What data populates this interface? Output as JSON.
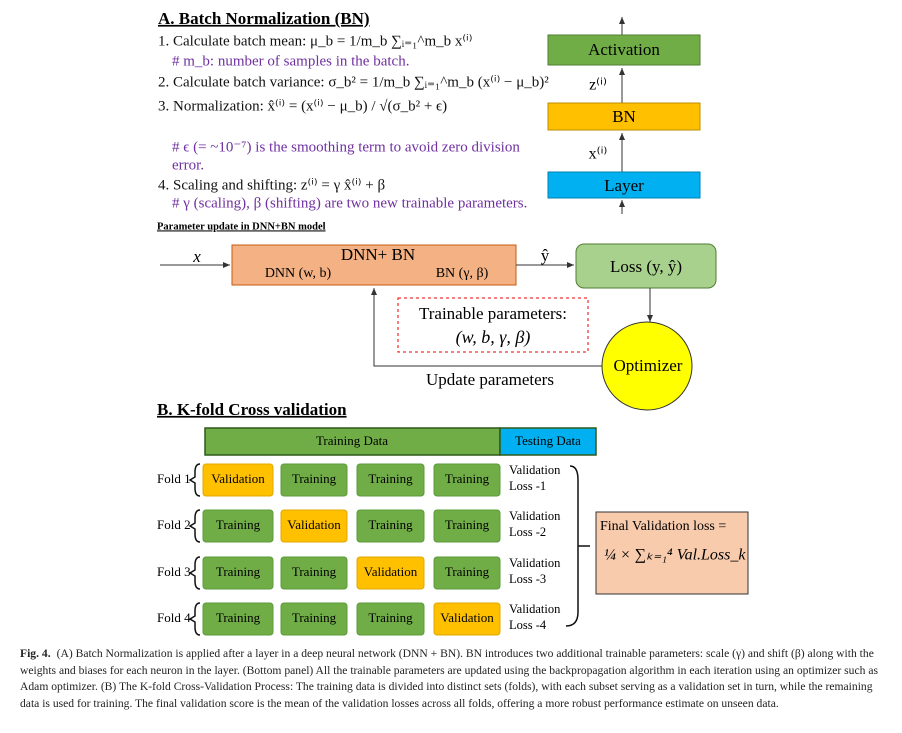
{
  "batch_norm": {
    "title": "A. Batch Normalization (BN)",
    "lines": [
      {
        "text": "1. Calculate batch mean: μ_b = 1/m_b ∑ᵢ₌₁^m_b x⁽ⁱ⁾",
        "kind": "step"
      },
      {
        "text": "# m_b: number of samples in the batch.",
        "kind": "note"
      },
      {
        "text": "2. Calculate batch variance: σ_b² = 1/m_b ∑ᵢ₌₁^m_b (x⁽ⁱ⁾ − μ_b)²",
        "kind": "step"
      },
      {
        "text": "3. Normalization: x̂⁽ⁱ⁾ = (x⁽ⁱ⁾ − μ_b) / √(σ_b² + ϵ)",
        "kind": "step"
      },
      {
        "text": "# ϵ (= ~10⁻⁷) is the smoothing term to avoid zero division",
        "kind": "note"
      },
      {
        "text": "error.",
        "kind": "note"
      },
      {
        "text": "4. Scaling and shifting: z⁽ⁱ⁾ = γ x̂⁽ⁱ⁾ + β",
        "kind": "step"
      },
      {
        "text": "# γ (scaling), β (shifting) are two new trainable parameters.",
        "kind": "note"
      }
    ],
    "stack": {
      "activation": "Activation",
      "z_label": "z⁽ⁱ⁾",
      "bn": "BN",
      "x_label": "x⁽ⁱ⁾",
      "layer": "Layer"
    }
  },
  "param_update": {
    "title": "Parameter update in DNN+BN model",
    "input": "x",
    "model": "DNN+ BN",
    "dnn": "DNN (w, b)",
    "bn": "BN (γ, β)",
    "output": "ŷ",
    "loss": "Loss (y, ŷ)",
    "trainable_title": "Trainable parameters:",
    "trainable_params": "(w, b, γ, β)",
    "optimizer": "Optimizer",
    "update": "Update parameters"
  },
  "kfold": {
    "title": "B. K-fold Cross validation",
    "training_header": "Training Data",
    "testing_header": "Testing Data",
    "folds": [
      {
        "label": "Fold 1",
        "cells": [
          "Validation",
          "Training",
          "Training",
          "Training"
        ],
        "loss": [
          "Validation",
          "Loss -1"
        ]
      },
      {
        "label": "Fold 2",
        "cells": [
          "Training",
          "Validation",
          "Training",
          "Training"
        ],
        "loss": [
          "Validation",
          "Loss -2"
        ]
      },
      {
        "label": "Fold 3",
        "cells": [
          "Training",
          "Training",
          "Validation",
          "Training"
        ],
        "loss": [
          "Validation",
          "Loss -3"
        ]
      },
      {
        "label": "Fold 4",
        "cells": [
          "Training",
          "Training",
          "Training",
          "Validation"
        ],
        "loss": [
          "Validation",
          "Loss -4"
        ]
      }
    ],
    "final_title": "Final Validation loss =",
    "final_formula": "¼ × ∑ₖ₌₁⁴ Val.Loss_k"
  },
  "caption": {
    "label": "Fig. 4.",
    "text": "(A) Batch Normalization is applied after a layer in a deep neural network (DNN + BN). BN introduces two additional trainable parameters: scale (γ) and shift (β) along with the weights and biases for each neuron in the layer. (Bottom panel) All the trainable parameters are updated using the backpropagation algorithm in each iteration using an optimizer such as Adam optimizer. (B) The K-fold Cross-Validation Process: The training data is divided into distinct sets (folds), with each subset serving as a validation set in turn, while the remaining data is used for training. The final validation score is the mean of the validation losses across all folds, offering a more robust performance estimate on unseen data."
  }
}
